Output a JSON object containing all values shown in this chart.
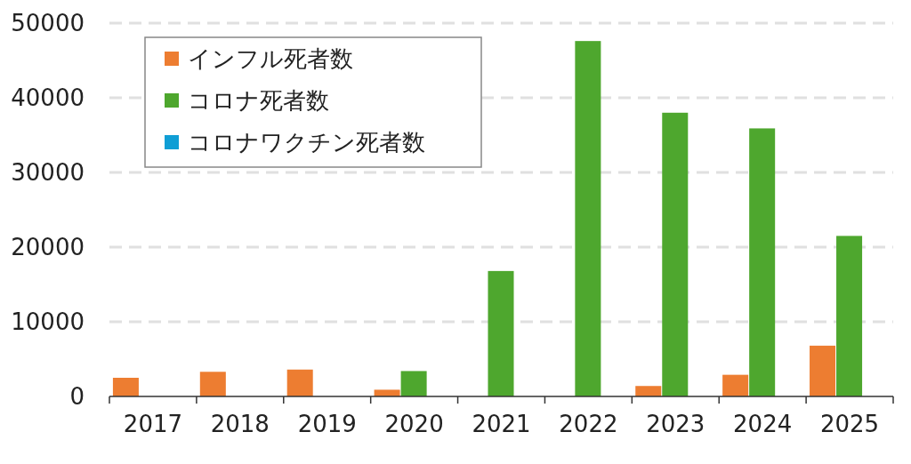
{
  "chart_data": {
    "type": "bar",
    "categories": [
      "2017",
      "2018",
      "2019",
      "2020",
      "2021",
      "2022",
      "2023",
      "2024",
      "2025"
    ],
    "series": [
      {
        "name": "インフル死者数",
        "color": "#ed7d31",
        "values": [
          2500,
          3300,
          3600,
          900,
          null,
          null,
          1400,
          2900,
          6800
        ]
      },
      {
        "name": "コロナ死者数",
        "color": "#4ea72e",
        "values": [
          null,
          null,
          null,
          3400,
          16800,
          47600,
          38000,
          35900,
          21500
        ]
      },
      {
        "name": "コロナワクチン死者数",
        "color": "#0f9ed5",
        "values": [
          null,
          null,
          null,
          null,
          null,
          null,
          null,
          null,
          null
        ]
      }
    ],
    "ylim": [
      0,
      50000
    ],
    "yticks": [
      0,
      10000,
      20000,
      30000,
      40000,
      50000
    ],
    "grid": "y",
    "legend": "top left"
  }
}
